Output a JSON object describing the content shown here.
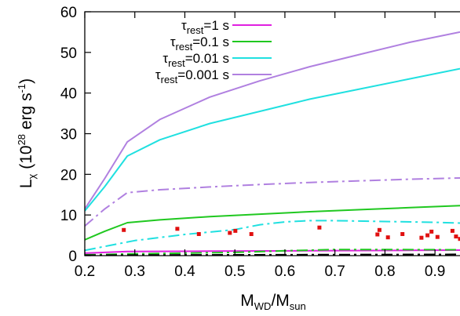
{
  "chart_data": {
    "type": "line",
    "title": "",
    "xlabel": {
      "main": "M",
      "sub1": "WD",
      "mid": "/M",
      "sub2": "sun"
    },
    "ylabel": {
      "main": "L",
      "sub": "χ",
      "open": " (10",
      "sup": "28",
      "unit": " erg s",
      "sup2": "-1",
      "close": ")"
    },
    "xlim": [
      0.2,
      0.95
    ],
    "ylim": [
      0,
      60
    ],
    "xticks": [
      "0.2",
      "0.3",
      "0.4",
      "0.5",
      "0.6",
      "0.7",
      "0.8",
      "0.9"
    ],
    "yticks": [
      "0",
      "10",
      "20",
      "30",
      "40",
      "50",
      "60"
    ],
    "xtick_values": [
      0.2,
      0.3,
      0.4,
      0.5,
      0.6,
      0.7,
      0.8,
      0.9
    ],
    "ytick_values": [
      0,
      10,
      20,
      30,
      40,
      50,
      60
    ],
    "grid": false,
    "legend_position": "top-left",
    "legend": [
      {
        "prefix": "τ",
        "sub": "rest",
        "suffix": "=1 s",
        "color": "#e020e0"
      },
      {
        "prefix": "τ",
        "sub": "rest",
        "suffix": "=0.1 s",
        "color": "#20c820"
      },
      {
        "prefix": "τ",
        "sub": "rest",
        "suffix": "=0.01 s",
        "color": "#20e0e0"
      },
      {
        "prefix": "τ",
        "sub": "rest",
        "suffix": "=0.001 s",
        "color": "#b080e0"
      }
    ],
    "series": [
      {
        "name": "τrest=0.001 s",
        "color": "#b080e0",
        "dash": "solid",
        "x": [
          0.2,
          0.24,
          0.285,
          0.35,
          0.45,
          0.55,
          0.65,
          0.75,
          0.85,
          0.95
        ],
        "y": [
          11.5,
          19,
          28,
          33.5,
          39,
          43,
          46.5,
          49.5,
          52.5,
          55
        ]
      },
      {
        "name": "τrest=0.01 s",
        "color": "#20e0e0",
        "dash": "solid",
        "x": [
          0.2,
          0.24,
          0.285,
          0.35,
          0.45,
          0.55,
          0.65,
          0.75,
          0.85,
          0.95
        ],
        "y": [
          11,
          17,
          24.5,
          28.5,
          32.5,
          35.5,
          38.5,
          41,
          43.5,
          46
        ]
      },
      {
        "name": "τrest=0.1 s",
        "color": "#20c820",
        "dash": "solid",
        "x": [
          0.2,
          0.24,
          0.285,
          0.35,
          0.45,
          0.55,
          0.65,
          0.75,
          0.85,
          0.95
        ],
        "y": [
          3.9,
          6,
          8.1,
          8.8,
          9.6,
          10.2,
          10.8,
          11.3,
          11.8,
          12.3
        ]
      },
      {
        "name": "τrest=1 s",
        "color": "#e020e0",
        "dash": "solid",
        "x": [
          0.2,
          0.285,
          0.45,
          0.65,
          0.85,
          0.95
        ],
        "y": [
          0.6,
          1.0,
          1.1,
          1.2,
          1.3,
          1.35
        ]
      },
      {
        "color": "#b080e0",
        "dash": "dashdot",
        "x": [
          0.2,
          0.24,
          0.285,
          0.35,
          0.45,
          0.55,
          0.65,
          0.75,
          0.85,
          0.95
        ],
        "y": [
          7.3,
          11.5,
          15.5,
          16.2,
          16.9,
          17.5,
          18,
          18.4,
          18.8,
          19.1
        ]
      },
      {
        "color": "#20e0e0",
        "dash": "dashdot",
        "x": [
          0.2,
          0.25,
          0.3,
          0.4,
          0.5,
          0.55,
          0.6,
          0.65,
          0.7,
          0.8,
          0.9,
          0.95
        ],
        "y": [
          1.3,
          2.5,
          3.7,
          5.2,
          6.4,
          7.6,
          8.3,
          8.6,
          8.6,
          8.4,
          8.2,
          8.0
        ]
      },
      {
        "color": "#20c820",
        "dash": "dashdot",
        "x": [
          0.2,
          0.3,
          0.5,
          0.6,
          0.7,
          0.8,
          0.95
        ],
        "y": [
          0.2,
          0.45,
          0.8,
          1.2,
          1.5,
          1.5,
          1.45
        ]
      },
      {
        "color": "#e020e0",
        "dash": "dashdot",
        "x": [
          0.2,
          0.3,
          0.5,
          0.7,
          0.95
        ],
        "y": [
          0.05,
          0.1,
          0.15,
          0.2,
          0.2
        ]
      },
      {
        "color": "#000000",
        "dash": "dashdot",
        "x": [
          0.2,
          0.5,
          0.95
        ],
        "y": [
          0.1,
          0.2,
          0.3
        ]
      }
    ],
    "scatter": {
      "color": "#e01010",
      "points": [
        [
          0.278,
          6.3
        ],
        [
          0.385,
          6.6
        ],
        [
          0.428,
          5.3
        ],
        [
          0.49,
          5.6
        ],
        [
          0.501,
          6.1
        ],
        [
          0.533,
          5.3
        ],
        [
          0.669,
          6.9
        ],
        [
          0.785,
          5.2
        ],
        [
          0.789,
          6.3
        ],
        [
          0.806,
          4.5
        ],
        [
          0.835,
          5.3
        ],
        [
          0.873,
          4.4
        ],
        [
          0.885,
          5.0
        ],
        [
          0.893,
          5.9
        ],
        [
          0.905,
          4.6
        ],
        [
          0.935,
          6.1
        ],
        [
          0.942,
          4.7
        ],
        [
          0.95,
          4.1
        ]
      ]
    }
  }
}
